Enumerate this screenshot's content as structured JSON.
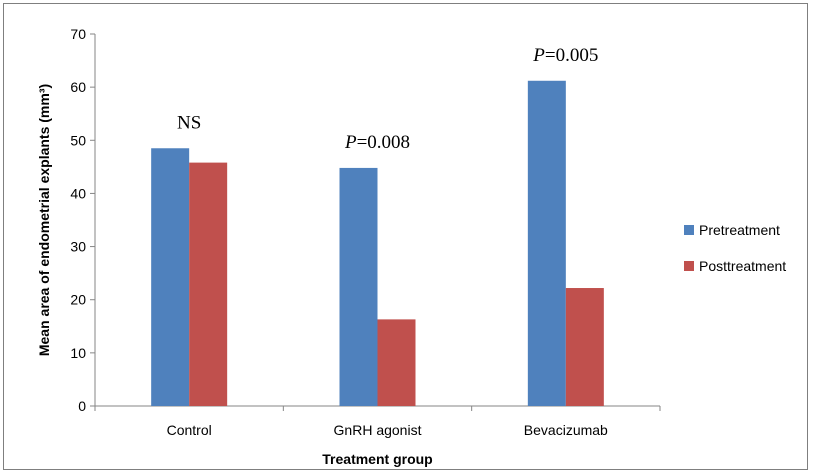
{
  "chart_data": {
    "type": "bar",
    "title": "",
    "xlabel": "Treatment group",
    "ylabel": "Mean area of endometrial explants (mm³)",
    "ylim": [
      0,
      70
    ],
    "yticks": [
      "0",
      "10",
      "20",
      "30",
      "40",
      "50",
      "60",
      "70"
    ],
    "categories": [
      "Control",
      "GnRH agonist",
      "Bevacizumab"
    ],
    "series": [
      {
        "name": "Pretreatment",
        "color": "#4f81bd",
        "values": [
          48.5,
          44.8,
          61.2
        ]
      },
      {
        "name": "Posttreatment",
        "color": "#c0504d",
        "values": [
          45.8,
          16.3,
          22.2
        ]
      }
    ],
    "annotations": [
      {
        "category": "Control",
        "prefix": "",
        "text": "NS"
      },
      {
        "category": "GnRH agonist",
        "prefix": "P",
        "text": "=0.008"
      },
      {
        "category": "Bevacizumab",
        "prefix": "P",
        "text": "=0.005"
      }
    ],
    "legend": {
      "position": "right"
    },
    "grid": false
  }
}
